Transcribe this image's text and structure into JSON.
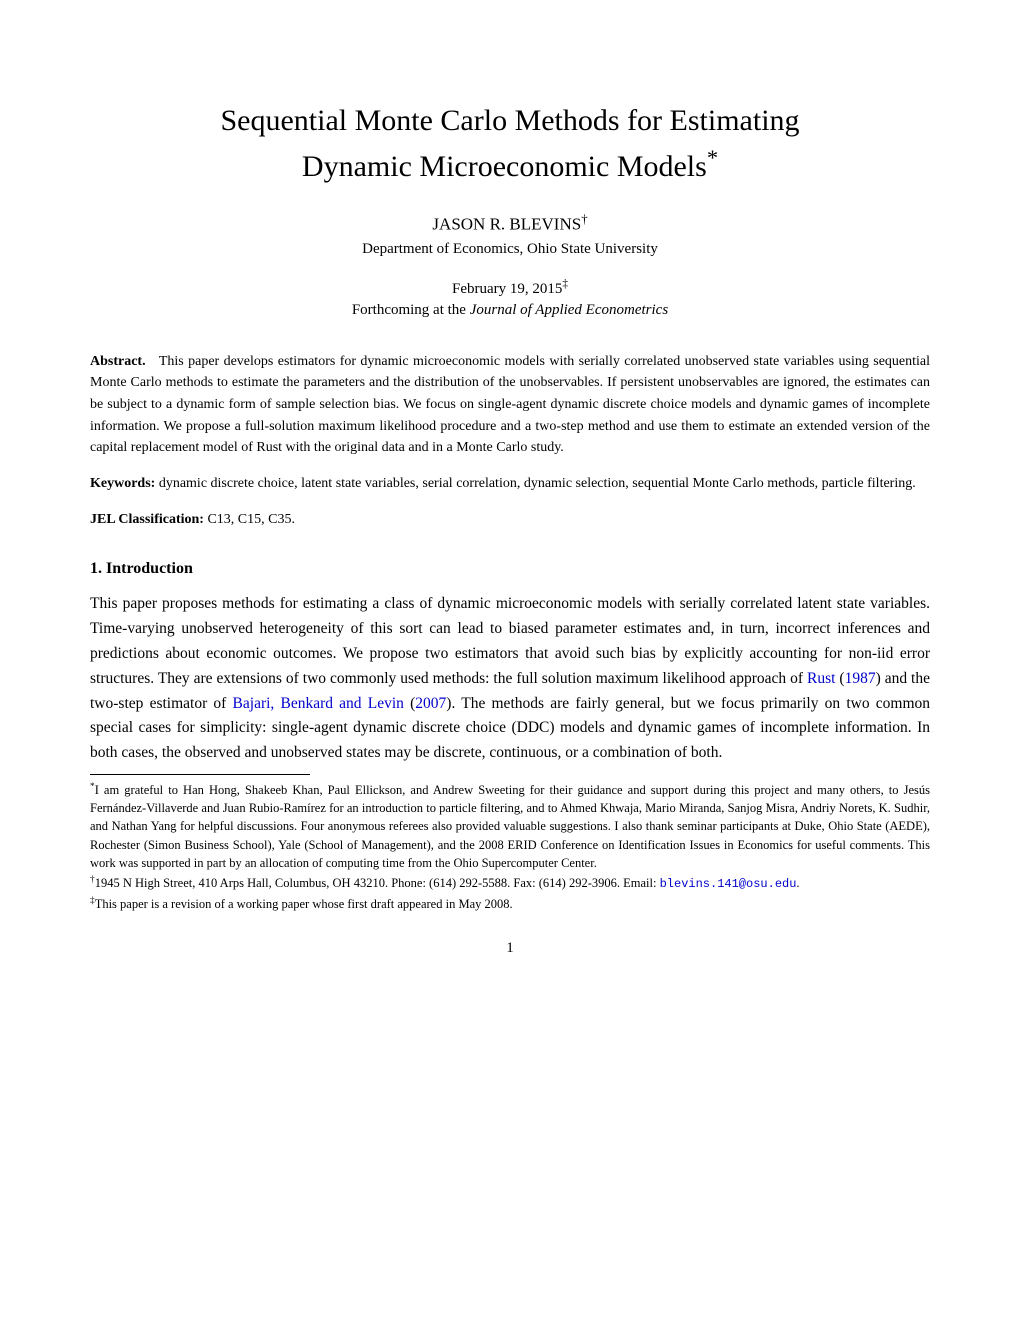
{
  "title_line1": "Sequential Monte Carlo Methods for Estimating",
  "title_line2": "Dynamic Microeconomic Models",
  "title_footnote_marker": "*",
  "author": "JASON R. BLEVINS",
  "author_footnote_marker": "†",
  "affiliation": "Department of Economics, Ohio State University",
  "date": "February 19, 2015",
  "date_footnote_marker": "‡",
  "forthcoming_prefix": "Forthcoming at the ",
  "forthcoming_journal": "Journal of Applied Econometrics",
  "abstract_label": "Abstract.",
  "abstract_text": "This paper develops estimators for dynamic microeconomic models with serially correlated unobserved state variables using sequential Monte Carlo methods to estimate the parameters and the distribution of the unobservables. If persistent unobservables are ignored, the estimates can be subject to a dynamic form of sample selection bias. We focus on single-agent dynamic discrete choice models and dynamic games of incomplete information. We propose a full-solution maximum likelihood procedure and a two-step method and use them to estimate an extended version of the capital replacement model of Rust with the original data and in a Monte Carlo study.",
  "keywords_label": "Keywords:",
  "keywords_text": " dynamic discrete choice, latent state variables, serial correlation, dynamic selection, sequential Monte Carlo methods, particle filtering.",
  "jel_label": "JEL Classification:",
  "jel_text": " C13, C15, C35.",
  "section_heading": "1. Introduction",
  "intro_text_1": "This paper proposes methods for estimating a class of dynamic microeconomic models with serially correlated latent state variables. Time-varying unobserved heterogeneity of this sort can lead to biased parameter estimates and, in turn, incorrect inferences and predictions about economic outcomes. We propose two estimators that avoid such bias by explicitly accounting for non-iid error structures. They are extensions of two commonly used methods: the full solution maximum likelihood approach of ",
  "cite_rust_author": "Rust",
  "cite_rust_year": "1987",
  "intro_text_2": " and the two-step estimator of ",
  "cite_bbl_authors": "Bajari, Benkard and Levin",
  "cite_bbl_year": "2007",
  "intro_text_3": ". The methods are fairly general, but we focus primarily on two common special cases for simplicity: single-agent dynamic discrete choice (DDC) models and dynamic games of incomplete information. In both cases, the observed and unobserved states may be discrete, continuous, or a combination of both.",
  "footnote_star_marker": "*",
  "footnote_star_text": "I am grateful to Han Hong, Shakeeb Khan, Paul Ellickson, and Andrew Sweeting for their guidance and support during this project and many others, to Jesús Fernández-Villaverde and Juan Rubio-Ramírez for an introduction to particle filtering, and to Ahmed Khwaja, Mario Miranda, Sanjog Misra, Andriy Norets, K. Sudhir, and Nathan Yang for helpful discussions. Four anonymous referees also provided valuable suggestions. I also thank seminar participants at Duke, Ohio State (AEDE), Rochester (Simon Business School), Yale (School of Management), and the 2008 ERID Conference on Identification Issues in Economics for useful comments. This work was supported in part by an allocation of computing time from the Ohio Supercomputer Center.",
  "footnote_dagger_marker": "†",
  "footnote_dagger_text": "1945 N High Street, 410 Arps Hall, Columbus, OH 43210. Phone: (614) 292-5588. Fax: (614) 292-3906. Email: ",
  "footnote_dagger_email": "blevins.141@osu.edu",
  "footnote_dagger_period": ".",
  "footnote_ddagger_marker": "‡",
  "footnote_ddagger_text": "This paper is a revision of a working paper whose first draft appeared in May 2008.",
  "page_number": "1"
}
